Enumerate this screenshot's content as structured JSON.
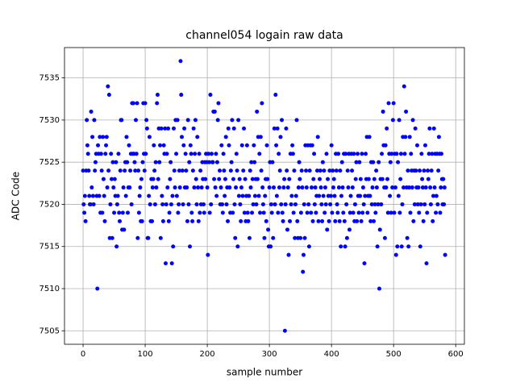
{
  "chart_data": {
    "type": "scatter",
    "title": "channel054 logain raw data",
    "x_label": "sample number",
    "y_label": "ADC Code",
    "color": "#0000ff",
    "grid": true,
    "xlim": [
      -29.9,
      614
    ],
    "ylim": [
      7503.4,
      7538.6
    ],
    "xticks": [
      0,
      100,
      200,
      300,
      400,
      500,
      600
    ],
    "yticks": [
      7505,
      7510,
      7515,
      7520,
      7525,
      7530,
      7535
    ],
    "x": [
      0,
      1,
      2,
      3,
      4,
      5,
      6,
      7,
      8,
      9,
      10,
      11,
      12,
      13,
      14,
      15,
      16,
      17,
      18,
      19,
      20,
      21,
      22,
      23,
      24,
      25,
      26,
      27,
      28,
      29,
      30,
      31,
      32,
      33,
      34,
      35,
      36,
      37,
      38,
      39,
      40,
      41,
      42,
      43,
      44,
      45,
      46,
      47,
      48,
      49,
      50,
      51,
      52,
      53,
      54,
      55,
      56,
      57,
      58,
      59,
      60,
      61,
      62,
      63,
      64,
      65,
      66,
      67,
      68,
      69,
      70,
      71,
      72,
      73,
      74,
      75,
      76,
      77,
      78,
      79,
      80,
      81,
      82,
      83,
      84,
      85,
      86,
      87,
      88,
      89,
      90,
      91,
      92,
      93,
      94,
      95,
      96,
      97,
      98,
      99,
      100,
      101,
      102,
      103,
      104,
      105,
      106,
      107,
      108,
      109,
      110,
      111,
      112,
      113,
      114,
      115,
      116,
      117,
      118,
      119,
      120,
      121,
      122,
      123,
      124,
      125,
      126,
      127,
      128,
      129,
      130,
      131,
      132,
      133,
      134,
      135,
      136,
      137,
      138,
      139,
      140,
      141,
      142,
      143,
      144,
      145,
      146,
      147,
      148,
      149,
      150,
      151,
      152,
      153,
      154,
      155,
      156,
      157,
      158,
      159,
      160,
      161,
      162,
      163,
      164,
      165,
      166,
      167,
      168,
      169,
      170,
      171,
      172,
      173,
      174,
      175,
      176,
      177,
      178,
      179,
      180,
      181,
      182,
      183,
      184,
      185,
      186,
      187,
      188,
      189,
      190,
      191,
      192,
      193,
      194,
      195,
      196,
      197,
      198,
      199,
      200,
      201,
      202,
      203,
      204,
      205,
      206,
      207,
      208,
      209,
      210,
      211,
      212,
      213,
      214,
      215,
      216,
      217,
      218,
      219,
      220,
      221,
      222,
      223,
      224,
      225,
      226,
      227,
      228,
      229,
      230,
      231,
      232,
      233,
      234,
      235,
      236,
      237,
      238,
      239,
      240,
      241,
      242,
      243,
      244,
      245,
      246,
      247,
      248,
      249,
      250,
      251,
      252,
      253,
      254,
      255,
      256,
      257,
      258,
      259,
      260,
      261,
      262,
      263,
      264,
      265,
      266,
      267,
      268,
      269,
      270,
      271,
      272,
      273,
      274,
      275,
      276,
      277,
      278,
      279,
      280,
      281,
      282,
      283,
      284,
      285,
      286,
      287,
      288,
      289,
      290,
      291,
      292,
      293,
      294,
      295,
      296,
      297,
      298,
      299,
      300,
      301,
      302,
      303,
      304,
      305,
      306,
      307,
      308,
      309,
      310,
      311,
      312,
      313,
      314,
      315,
      316,
      317,
      318,
      319,
      320,
      321,
      322,
      323,
      324,
      325,
      326,
      327,
      328,
      329,
      330,
      331,
      332,
      333,
      334,
      335,
      336,
      337,
      338,
      339,
      340,
      341,
      342,
      343,
      344,
      345,
      346,
      347,
      348,
      349,
      350,
      351,
      352,
      353,
      354,
      355,
      356,
      357,
      358,
      359,
      360,
      361,
      362,
      363,
      364,
      365,
      366,
      367,
      368,
      369,
      370,
      371,
      372,
      373,
      374,
      375,
      376,
      377,
      378,
      379,
      380,
      381,
      382,
      383,
      384,
      385,
      386,
      387,
      388,
      389,
      390,
      391,
      392,
      393,
      394,
      395,
      396,
      397,
      398,
      399,
      400,
      401,
      402,
      403,
      404,
      405,
      406,
      407,
      408,
      409,
      410,
      411,
      412,
      413,
      414,
      415,
      416,
      417,
      418,
      419,
      420,
      421,
      422,
      423,
      424,
      425,
      426,
      427,
      428,
      429,
      430,
      431,
      432,
      433,
      434,
      435,
      436,
      437,
      438,
      439,
      440,
      441,
      442,
      443,
      444,
      445,
      446,
      447,
      448,
      449,
      450,
      451,
      452,
      453,
      454,
      455,
      456,
      457,
      458,
      459,
      460,
      461,
      462,
      463,
      464,
      465,
      466,
      467,
      468,
      469,
      470,
      471,
      472,
      473,
      474,
      475,
      476,
      477,
      478,
      479,
      480,
      481,
      482,
      483,
      484,
      485,
      486,
      487,
      488,
      489,
      490,
      491,
      492,
      493,
      494,
      495,
      496,
      497,
      498,
      499,
      500,
      501,
      502,
      503,
      504,
      505,
      506,
      507,
      508,
      509,
      510,
      511,
      512,
      513,
      514,
      515,
      516,
      517,
      518,
      519,
      520,
      521,
      522,
      523,
      524,
      525,
      526,
      527,
      528,
      529,
      530,
      531,
      532,
      533,
      534,
      535,
      536,
      537,
      538,
      539,
      540,
      541,
      542,
      543,
      544,
      545,
      546,
      547,
      548,
      549,
      550,
      551,
      552,
      553,
      554,
      555,
      556,
      557,
      558,
      559,
      560,
      561,
      562,
      563,
      564,
      565,
      566,
      567,
      568,
      569,
      570,
      571,
      572,
      573,
      574,
      575,
      576,
      577,
      578,
      579,
      580,
      581,
      582,
      583
    ],
    "values": [
      7524,
      7520,
      7519,
      7521,
      7518,
      7524,
      7530,
      7527,
      7526,
      7524,
      7521,
      7520,
      7520,
      7531,
      7522,
      7528,
      7521,
      7520,
      7530,
      7524,
      7525,
      7526,
      7521,
      7510,
      7527,
      7526,
      7521,
      7528,
      7519,
      7526,
      7524,
      7519,
      7528,
      7523,
      7521,
      7518,
      7526,
      7527,
      7528,
      7522,
      7534,
      7524,
      7533,
      7516,
      7520,
      7526,
      7523,
      7516,
      7525,
      7522,
      7519,
      7523,
      7521,
      7525,
      7515,
      7520,
      7521,
      7526,
      7519,
      7518,
      7524,
      7530,
      7530,
      7517,
      7519,
      7522,
      7517,
      7524,
      7525,
      7521,
      7528,
      7525,
      7519,
      7522,
      7527,
      7522,
      7524,
      7526,
      7520,
      7532,
      7526,
      7532,
      7526,
      7525,
      7524,
      7530,
      7526,
      7532,
      7516,
      7524,
      7519,
      7521,
      7522,
      7518,
      7523,
      7518,
      7525,
      7532,
      7526,
      7524,
      7532,
      7526,
      7530,
      7529,
      7516,
      7516,
      7521,
      7528,
      7520,
      7518,
      7523,
      7518,
      7522,
      7523,
      7527,
      7524,
      7520,
      7525,
      7522,
      7532,
      7533,
      7523,
      7529,
      7525,
      7527,
      7516,
      7529,
      7521,
      7520,
      7518,
      7527,
      7526,
      7529,
      7513,
      7520,
      7526,
      7522,
      7529,
      7518,
      7519,
      7523,
      7525,
      7520,
      7513,
      7521,
      7515,
      7529,
      7524,
      7522,
      7530,
      7526,
      7521,
      7530,
      7519,
      7520,
      7524,
      7522,
      7537,
      7533,
      7528,
      7524,
      7520,
      7527,
      7529,
      7522,
      7526,
      7524,
      7522,
      7518,
      7530,
      7520,
      7525,
      7515,
      7527,
      7526,
      7519,
      7518,
      7524,
      7529,
      7522,
      7526,
      7530,
      7523,
      7520,
      7528,
      7522,
      7518,
      7526,
      7519,
      7524,
      7520,
      7522,
      7525,
      7523,
      7520,
      7519,
      7525,
      7523,
      7526,
      7525,
      7522,
      7514,
      7526,
      7525,
      7519,
      7533,
      7520,
      7526,
      7525,
      7525,
      7531,
      7523,
      7531,
      7522,
      7526,
      7521,
      7525,
      7530,
      7532,
      7523,
      7524,
      7520,
      7522,
      7527,
      7520,
      7519,
      7526,
      7524,
      7521,
      7523,
      7528,
      7520,
      7522,
      7518,
      7529,
      7527,
      7522,
      7519,
      7524,
      7525,
      7530,
      7519,
      7523,
      7529,
      7520,
      7516,
      7522,
      7526,
      7524,
      7515,
      7530,
      7521,
      7523,
      7520,
      7518,
      7522,
      7527,
      7521,
      7524,
      7529,
      7519,
      7523,
      7518,
      7521,
      7527,
      7519,
      7518,
      7521,
      7516,
      7524,
      7522,
      7525,
      7519,
      7523,
      7520,
      7527,
      7525,
      7521,
      7523,
      7520,
      7531,
      7523,
      7528,
      7521,
      7526,
      7519,
      7528,
      7524,
      7532,
      7522,
      7520,
      7519,
      7516,
      7521,
      7523,
      7518,
      7527,
      7523,
      7517,
      7515,
      7522,
      7525,
      7515,
      7520,
      7519,
      7525,
      7516,
      7522,
      7529,
      7520,
      7533,
      7527,
      7521,
      7529,
      7519,
      7526,
      7522,
      7524,
      7528,
      7520,
      7530,
      7519,
      7518,
      7522,
      7523,
      7505,
      7520,
      7529,
      7524,
      7517,
      7522,
      7514,
      7523,
      7518,
      7526,
      7520,
      7521,
      7527,
      7526,
      7519,
      7524,
      7516,
      7520,
      7521,
      7530,
      7518,
      7516,
      7522,
      7525,
      7523,
      7516,
      7519,
      7524,
      7522,
      7512,
      7514,
      7520,
      7516,
      7527,
      7524,
      7522,
      7519,
      7527,
      7520,
      7515,
      7524,
      7527,
      7519,
      7522,
      7527,
      7518,
      7523,
      7526,
      7520,
      7522,
      7519,
      7521,
      7524,
      7528,
      7518,
      7521,
      7523,
      7524,
      7522,
      7520,
      7518,
      7525,
      7521,
      7524,
      7519,
      7522,
      7520,
      7526,
      7517,
      7523,
      7521,
      7518,
      7524,
      7520,
      7521,
      7527,
      7519,
      7524,
      7522,
      7523,
      7521,
      7518,
      7526,
      7524,
      7520,
      7519,
      7526,
      7522,
      7518,
      7524,
      7515,
      7521,
      7525,
      7522,
      7519,
      7526,
      7518,
      7515,
      7526,
      7520,
      7516,
      7524,
      7522,
      7526,
      7517,
      7519,
      7521,
      7526,
      7524,
      7522,
      7519,
      7526,
      7518,
      7520,
      7523,
      7525,
      7518,
      7526,
      7521,
      7519,
      7525,
      7521,
      7523,
      7518,
      7526,
      7519,
      7522,
      7520,
      7513,
      7521,
      7526,
      7523,
      7528,
      7519,
      7521,
      7523,
      7528,
      7521,
      7518,
      7525,
      7520,
      7522,
      7525,
      7518,
      7523,
      7520,
      7519,
      7524,
      7522,
      7515,
      7520,
      7525,
      7510,
      7517,
      7523,
      7520,
      7526,
      7523,
      7531,
      7527,
      7522,
      7516,
      7527,
      7522,
      7529,
      7523,
      7519,
      7532,
      7526,
      7521,
      7525,
      7519,
      7526,
      7522,
      7530,
      7532,
      7519,
      7526,
      7522,
      7514,
      7526,
      7515,
      7525,
      7521,
      7530,
      7519,
      7523,
      7526,
      7515,
      7520,
      7528,
      7522,
      7534,
      7526,
      7528,
      7531,
      7522,
      7516,
      7524,
      7515,
      7522,
      7528,
      7519,
      7526,
      7524,
      7522,
      7530,
      7518,
      7524,
      7520,
      7529,
      7524,
      7522,
      7527,
      7520,
      7522,
      7519,
      7524,
      7515,
      7520,
      7526,
      7523,
      7522,
      7518,
      7524,
      7520,
      7527,
      7522,
      7513,
      7519,
      7524,
      7523,
      7526,
      7529,
      7522,
      7520,
      7524,
      7526,
      7518,
      7521,
      7529,
      7522,
      7526,
      7519,
      7521,
      7526,
      7520,
      7524,
      7528,
      7526,
      7519,
      7522,
      7526,
      7523,
      7520,
      7523,
      7520,
      7522,
      7514
    ]
  }
}
